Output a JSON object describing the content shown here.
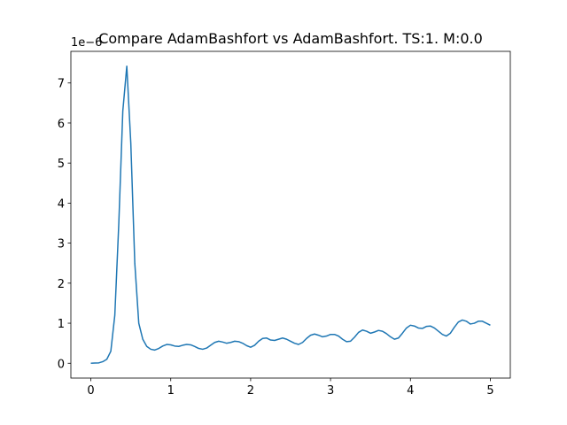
{
  "chart_data": {
    "type": "line",
    "title": "Compare AdamBashfort vs AdamBashfort. TS:1. M:0.0",
    "y_offset_label": "1e−6",
    "x": [
      0,
      0.05,
      0.1,
      0.15,
      0.2,
      0.25,
      0.3,
      0.35,
      0.4,
      0.45,
      0.5,
      0.55,
      0.6,
      0.65,
      0.7,
      0.75,
      0.8,
      0.85,
      0.9,
      0.95,
      1.0,
      1.05,
      1.1,
      1.15,
      1.2,
      1.25,
      1.3,
      1.35,
      1.4,
      1.45,
      1.5,
      1.55,
      1.6,
      1.65,
      1.7,
      1.75,
      1.8,
      1.85,
      1.9,
      1.95,
      2.0,
      2.05,
      2.1,
      2.15,
      2.2,
      2.25,
      2.3,
      2.35,
      2.4,
      2.45,
      2.5,
      2.55,
      2.6,
      2.65,
      2.7,
      2.75,
      2.8,
      2.85,
      2.9,
      2.95,
      3.0,
      3.05,
      3.1,
      3.15,
      3.2,
      3.25,
      3.3,
      3.35,
      3.4,
      3.45,
      3.5,
      3.55,
      3.6,
      3.65,
      3.7,
      3.75,
      3.8,
      3.85,
      3.9,
      3.95,
      4.0,
      4.05,
      4.1,
      4.15,
      4.2,
      4.25,
      4.3,
      4.35,
      4.4,
      4.45,
      4.5,
      4.55,
      4.6,
      4.65,
      4.7,
      4.75,
      4.8,
      4.85,
      4.9,
      4.95,
      5.0
    ],
    "series": [
      {
        "color": "#1f77b4",
        "values": [
          0,
          0.005,
          0.01,
          0.04,
          0.1,
          0.3,
          1.2,
          3.5,
          6.3,
          7.42,
          5.5,
          2.5,
          1.0,
          0.6,
          0.42,
          0.35,
          0.33,
          0.37,
          0.43,
          0.47,
          0.46,
          0.43,
          0.42,
          0.45,
          0.47,
          0.46,
          0.42,
          0.37,
          0.35,
          0.38,
          0.45,
          0.52,
          0.55,
          0.53,
          0.5,
          0.52,
          0.55,
          0.54,
          0.5,
          0.44,
          0.4,
          0.45,
          0.55,
          0.62,
          0.63,
          0.58,
          0.57,
          0.6,
          0.63,
          0.6,
          0.55,
          0.5,
          0.47,
          0.52,
          0.62,
          0.7,
          0.73,
          0.7,
          0.66,
          0.68,
          0.72,
          0.72,
          0.68,
          0.6,
          0.54,
          0.55,
          0.65,
          0.77,
          0.83,
          0.8,
          0.75,
          0.78,
          0.82,
          0.8,
          0.74,
          0.66,
          0.6,
          0.63,
          0.75,
          0.88,
          0.95,
          0.93,
          0.88,
          0.87,
          0.92,
          0.93,
          0.88,
          0.8,
          0.72,
          0.68,
          0.75,
          0.9,
          1.03,
          1.08,
          1.05,
          0.98,
          1.0,
          1.05,
          1.05,
          1.0,
          0.95
        ]
      }
    ],
    "xlim": [
      -0.25,
      5.25
    ],
    "ylim": [
      -0.37,
      7.79
    ],
    "xticks": [
      0,
      1,
      2,
      3,
      4,
      5
    ],
    "yticks": [
      0,
      1,
      2,
      3,
      4,
      5,
      6,
      7
    ]
  }
}
